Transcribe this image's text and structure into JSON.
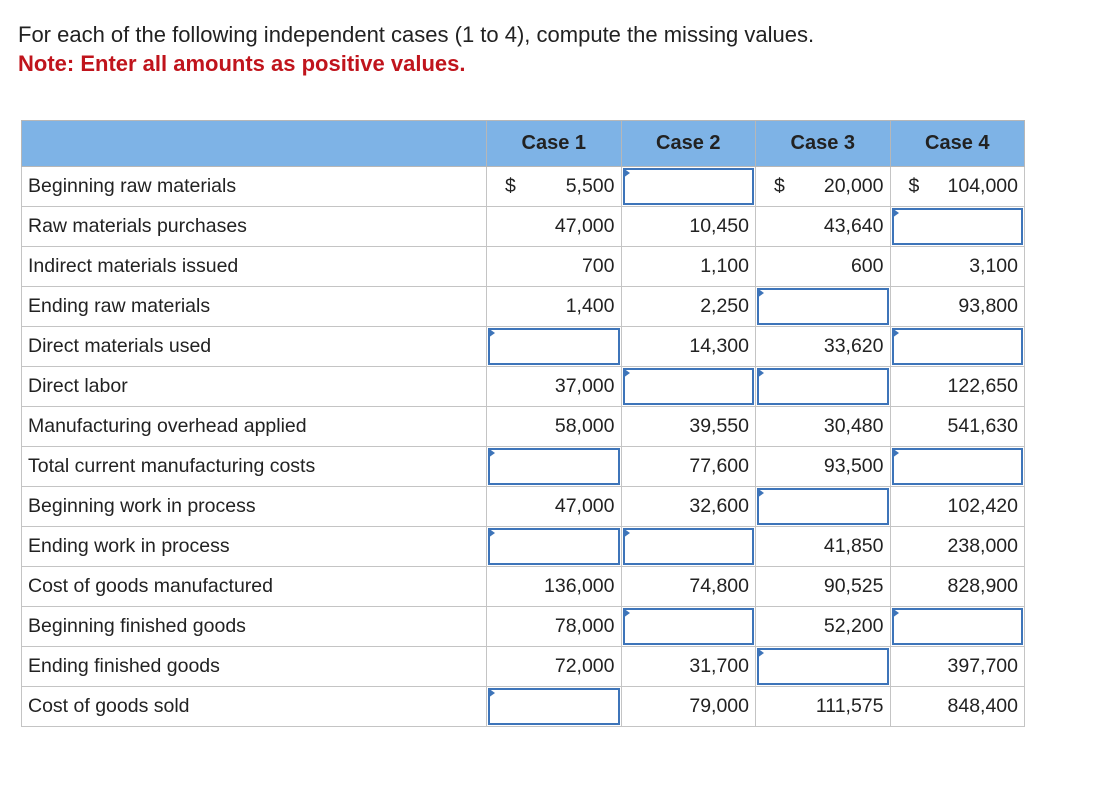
{
  "instructions": {
    "text": "For each of the following independent cases (1 to 4), compute the missing values.",
    "note": "Note: Enter all amounts as positive values."
  },
  "table": {
    "header": {
      "blank": "",
      "case1": "Case 1",
      "case2": "Case 2",
      "case3": "Case 3",
      "case4": "Case 4"
    },
    "rows": [
      {
        "label": "Beginning raw materials",
        "cells": [
          {
            "currency": "$",
            "value": "5,500"
          },
          {
            "input": true
          },
          {
            "currency": "$",
            "value": "20,000"
          },
          {
            "currency": "$",
            "value": "104,000"
          }
        ]
      },
      {
        "label": "Raw materials purchases",
        "cells": [
          {
            "value": "47,000"
          },
          {
            "value": "10,450"
          },
          {
            "value": "43,640"
          },
          {
            "input": true
          }
        ]
      },
      {
        "label": "Indirect materials issued",
        "cells": [
          {
            "value": "700"
          },
          {
            "value": "1,100"
          },
          {
            "value": "600"
          },
          {
            "value": "3,100"
          }
        ]
      },
      {
        "label": "Ending raw materials",
        "cells": [
          {
            "value": "1,400"
          },
          {
            "value": "2,250"
          },
          {
            "input": true
          },
          {
            "value": "93,800"
          }
        ]
      },
      {
        "label": "Direct materials used",
        "cells": [
          {
            "input": true
          },
          {
            "value": "14,300"
          },
          {
            "value": "33,620"
          },
          {
            "input": true
          }
        ]
      },
      {
        "label": "Direct labor",
        "cells": [
          {
            "value": "37,000"
          },
          {
            "input": true
          },
          {
            "input": true
          },
          {
            "value": "122,650"
          }
        ]
      },
      {
        "label": "Manufacturing overhead applied",
        "cells": [
          {
            "value": "58,000"
          },
          {
            "value": "39,550"
          },
          {
            "value": "30,480"
          },
          {
            "value": "541,630"
          }
        ]
      },
      {
        "label": "Total current manufacturing costs",
        "cells": [
          {
            "input": true
          },
          {
            "value": "77,600"
          },
          {
            "value": "93,500"
          },
          {
            "input": true
          }
        ]
      },
      {
        "label": "Beginning work in process",
        "cells": [
          {
            "value": "47,000"
          },
          {
            "value": "32,600"
          },
          {
            "input": true
          },
          {
            "value": "102,420"
          }
        ]
      },
      {
        "label": "Ending work in process",
        "cells": [
          {
            "input": true
          },
          {
            "input": true
          },
          {
            "value": "41,850"
          },
          {
            "value": "238,000"
          }
        ]
      },
      {
        "label": "Cost of goods manufactured",
        "cells": [
          {
            "value": "136,000"
          },
          {
            "value": "74,800"
          },
          {
            "value": "90,525"
          },
          {
            "value": "828,900"
          }
        ]
      },
      {
        "label": "Beginning finished goods",
        "cells": [
          {
            "value": "78,000"
          },
          {
            "input": true
          },
          {
            "value": "52,200"
          },
          {
            "input": true
          }
        ]
      },
      {
        "label": "Ending finished goods",
        "cells": [
          {
            "value": "72,000"
          },
          {
            "value": "31,700"
          },
          {
            "input": true
          },
          {
            "value": "397,700"
          }
        ]
      },
      {
        "label": "Cost of goods sold",
        "cells": [
          {
            "input": true
          },
          {
            "value": "79,000"
          },
          {
            "value": "111,575"
          },
          {
            "value": "848,400"
          }
        ]
      }
    ]
  },
  "colors": {
    "header_bg": "#7eb3e6",
    "note_red": "#c0141c",
    "input_border": "#3d74b9"
  }
}
